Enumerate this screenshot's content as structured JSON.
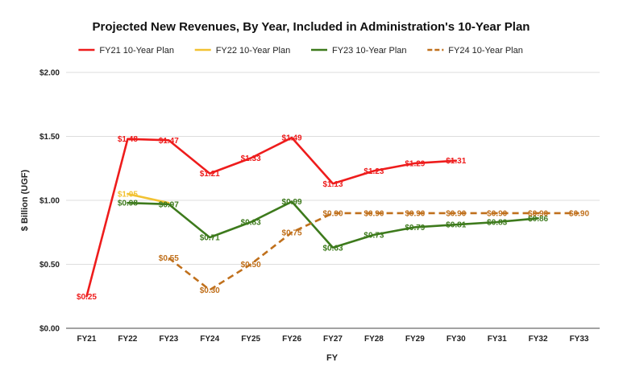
{
  "chart_data": {
    "type": "line",
    "title": "Projected New Revenues, By Year, Included in Administration's 10-Year Plan",
    "xlabel": "FY",
    "ylabel": "$ Billion (UGF)",
    "ylim": [
      0,
      2
    ],
    "yticks": [
      0,
      0.5,
      1.0,
      1.5,
      2.0
    ],
    "ytick_labels": [
      "$0.00",
      "$0.50",
      "$1.00",
      "$1.50",
      "$2.00"
    ],
    "grid": true,
    "legend_position": "top-center",
    "categories": [
      "FY21",
      "FY22",
      "FY23",
      "FY24",
      "FY25",
      "FY26",
      "FY27",
      "FY28",
      "FY29",
      "FY30",
      "FY31",
      "FY32",
      "FY33"
    ],
    "series": [
      {
        "name": "FY21 10-Year Plan",
        "color": "#ee1c1c",
        "dashed": false,
        "values": [
          0.25,
          1.48,
          1.47,
          1.21,
          1.33,
          1.49,
          1.13,
          1.23,
          1.29,
          1.31,
          null,
          null,
          null
        ],
        "labels": [
          "$0.25",
          "$1.48",
          "$1.47",
          "$1.21",
          "$1.33",
          "$1.49",
          "$1.13",
          "$1.23",
          "$1.29",
          "$1.31",
          null,
          null,
          null
        ]
      },
      {
        "name": "FY22 10-Year Plan",
        "color": "#f2c232",
        "dashed": false,
        "values": [
          null,
          1.05,
          0.98,
          null,
          null,
          null,
          null,
          null,
          null,
          null,
          null,
          null,
          null
        ],
        "labels": [
          null,
          "$1.05",
          null,
          null,
          null,
          null,
          null,
          null,
          null,
          null,
          null,
          null,
          null
        ]
      },
      {
        "name": "FY23 10-Year Plan",
        "color": "#3d7a1c",
        "dashed": false,
        "values": [
          null,
          0.98,
          0.97,
          0.71,
          0.83,
          0.99,
          0.63,
          0.73,
          0.79,
          0.81,
          0.83,
          0.86,
          null
        ],
        "labels": [
          null,
          "$0.98",
          "$0.97",
          "$0.71",
          "$0.83",
          "$0.99",
          "$0.63",
          "$0.73",
          "$0.79",
          "$0.81",
          "$0.83",
          "$0.86",
          null
        ]
      },
      {
        "name": "FY24 10-Year Plan",
        "color": "#c0701c",
        "dashed": true,
        "values": [
          null,
          null,
          0.55,
          0.3,
          0.5,
          0.75,
          0.9,
          0.9,
          0.9,
          0.9,
          0.9,
          0.9,
          0.9
        ],
        "labels": [
          null,
          null,
          "$0.55",
          "$0.30",
          "$0.50",
          "$0.75",
          "$0.90",
          "$0.90",
          "$0.90",
          "$0.90",
          "$0.90",
          "$0.90",
          "$0.90"
        ]
      }
    ]
  }
}
